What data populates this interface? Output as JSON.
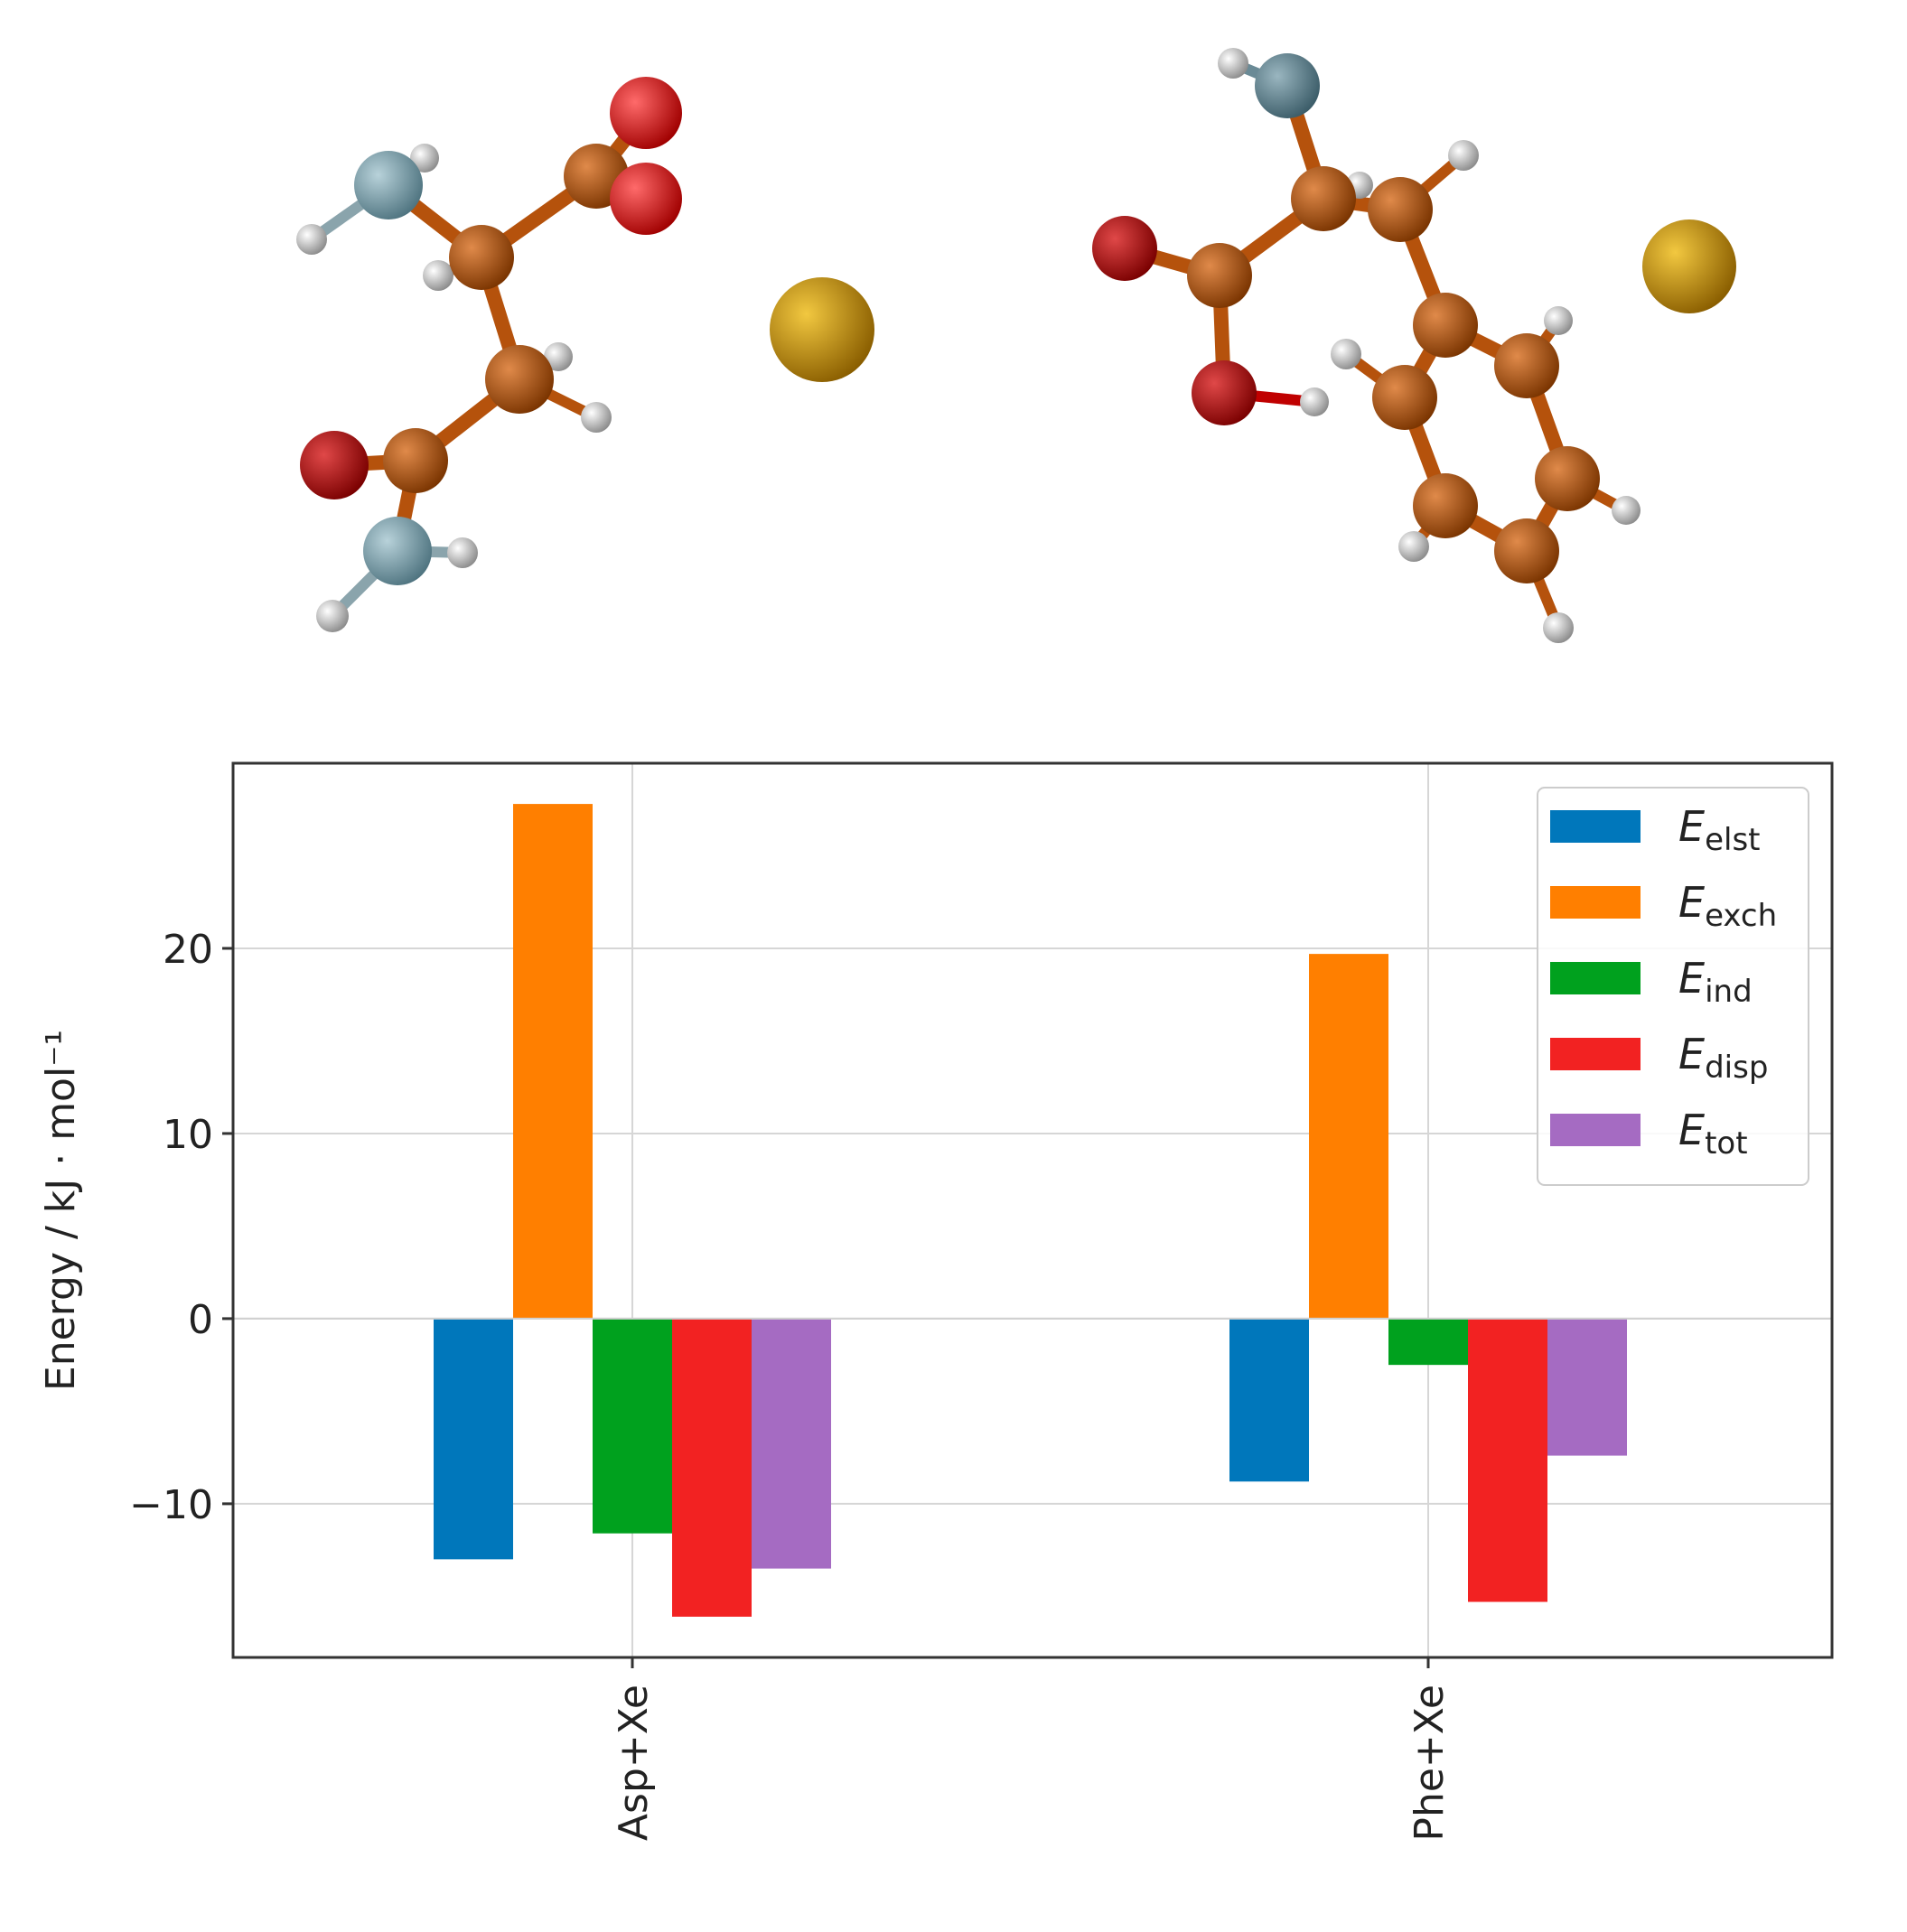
{
  "molecules": [
    {
      "name": "Asp+Xe",
      "atom_colors": {
        "C": "#b5520c",
        "O": "#e00000",
        "N": "#7a9eaa",
        "H": "#d8d8d8",
        "Xe": "#c8920a"
      }
    },
    {
      "name": "Phe+Xe",
      "atom_colors": {
        "C": "#b5520c",
        "O": "#c00000",
        "N": "#5a7e8a",
        "H": "#d8d8d8",
        "Xe": "#d4a010"
      }
    }
  ],
  "chart_data": {
    "type": "bar",
    "title": "",
    "xlabel": "",
    "ylabel": "Energy / kJ · mol⁻¹",
    "categories": [
      "Asp+Xe",
      "Phe+Xe"
    ],
    "series": [
      {
        "name": "elst",
        "values": [
          -13.0,
          -8.8
        ],
        "color": "#0077bb"
      },
      {
        "name": "exch",
        "values": [
          27.8,
          19.7
        ],
        "color": "#ff7f00"
      },
      {
        "name": "ind",
        "values": [
          -11.6,
          -2.5
        ],
        "color": "#00a11e"
      },
      {
        "name": "disp",
        "values": [
          -16.1,
          -15.3
        ],
        "color": "#f22222"
      },
      {
        "name": "tot",
        "values": [
          -13.5,
          -7.4
        ],
        "color": "#a56bc2"
      }
    ],
    "legend_symbol": "E",
    "ylim": [
      -18.3,
      30.0
    ],
    "yticks": [
      20,
      10,
      0,
      -10
    ],
    "ytick_labels": [
      "20",
      "10",
      "0",
      "−10"
    ],
    "grid": true,
    "legend_position": "top-right"
  }
}
